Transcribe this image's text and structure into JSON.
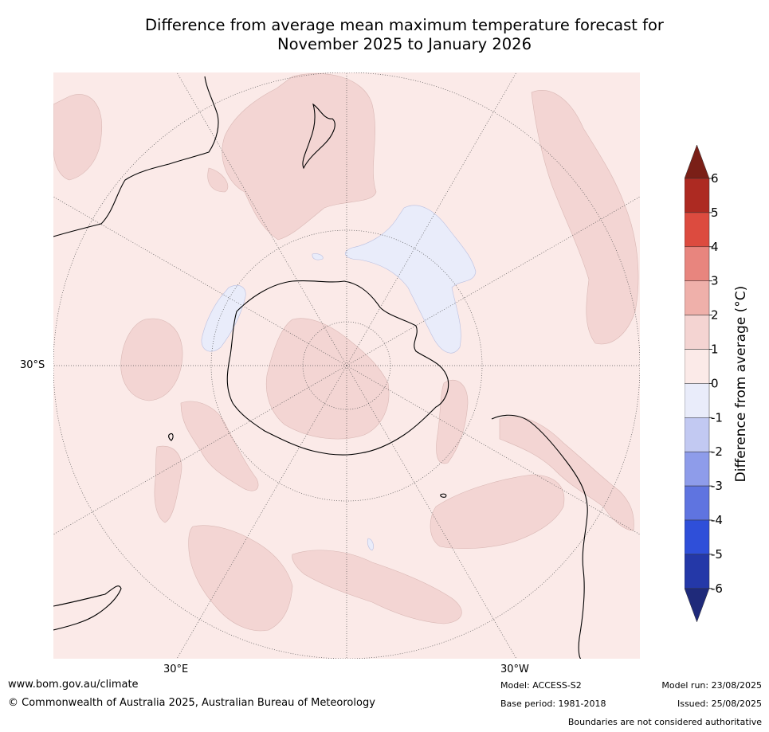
{
  "title": {
    "line1": "Difference from average mean maximum temperature forecast for",
    "line2": "November 2025 to January 2026"
  },
  "map": {
    "projection": "south-polar-stereographic",
    "colors": {
      "background": "#fbeae8",
      "warm_1_2": "#f3d5d3",
      "cool_0_m1": "#e9ecfa",
      "coast": "#000000",
      "graticule": "#555555"
    },
    "lat_labels": [
      {
        "text": "30°S"
      }
    ],
    "lon_labels": [
      {
        "text": "30°E"
      },
      {
        "text": "30°W"
      }
    ]
  },
  "colorbar": {
    "label": "Difference from average (°C)",
    "label_text": "Difference from average ($^\\circ$C)",
    "ticks": [
      "6",
      "5",
      "4",
      "3",
      "2",
      "1",
      "0",
      "-1",
      "-2",
      "-3",
      "-4",
      "-5",
      "-6"
    ],
    "bins": [
      {
        "from": 6,
        "to": "max",
        "color": "#7a1f17"
      },
      {
        "from": 5,
        "to": 6,
        "color": "#ad2a22"
      },
      {
        "from": 4,
        "to": 5,
        "color": "#dc4b3f"
      },
      {
        "from": 3,
        "to": 4,
        "color": "#e8857e"
      },
      {
        "from": 2,
        "to": 3,
        "color": "#efb0aa"
      },
      {
        "from": 1,
        "to": 2,
        "color": "#f4d4d2"
      },
      {
        "from": 0,
        "to": 1,
        "color": "#fbeae8"
      },
      {
        "from": -1,
        "to": 0,
        "color": "#e9ecfa"
      },
      {
        "from": -2,
        "to": -1,
        "color": "#c2c9f2"
      },
      {
        "from": -3,
        "to": -2,
        "color": "#8e9cea"
      },
      {
        "from": -4,
        "to": -3,
        "color": "#5f74e0"
      },
      {
        "from": -5,
        "to": -4,
        "color": "#2f4fd9"
      },
      {
        "from": -6,
        "to": -5,
        "color": "#2438a8"
      },
      {
        "from": "min",
        "to": -6,
        "color": "#1f2a7a"
      }
    ]
  },
  "footer": {
    "website": "www.bom.gov.au/climate",
    "copyright": "© Commonwealth of Australia 2025, Australian Bureau of Meteorology",
    "model": "Model: ACCESS-S2",
    "base_period": "Base period: 1981-2018",
    "model_run": "Model run: 23/08/2025",
    "issued": "Issued: 25/08/2025",
    "disclaimer": "Boundaries are not considered authoritative"
  }
}
